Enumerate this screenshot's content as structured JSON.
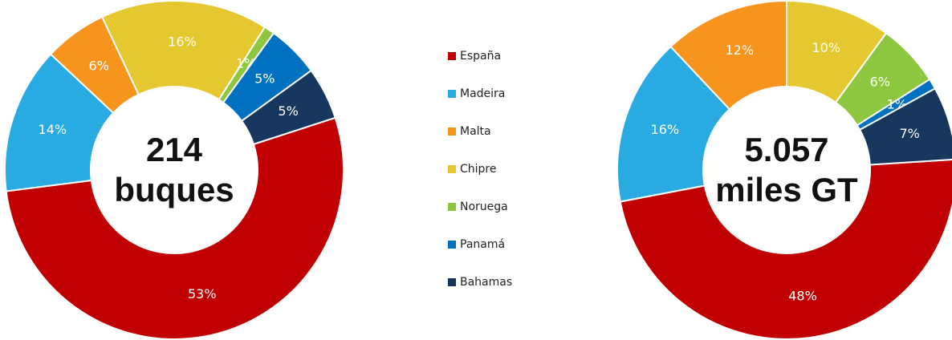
{
  "chart_data": [
    {
      "type": "pie",
      "categories": [
        "España",
        "Madeira",
        "Malta",
        "Chipre",
        "Noruega",
        "Panamá",
        "Bahamas"
      ],
      "values": [
        53,
        14,
        6,
        16,
        1,
        5,
        5
      ],
      "value_labels": [
        "53%",
        "14%",
        "6%",
        "16%",
        "1%",
        "5%",
        "5%"
      ],
      "colors": [
        "#c00000",
        "#29abe2",
        "#f7941d",
        "#e5c72f",
        "#8dc63f",
        "#0070c0",
        "#17375e"
      ],
      "center_label": [
        "214",
        "buques"
      ],
      "start_angle": 72
    },
    {
      "type": "pie",
      "categories": [
        "España",
        "Madeira",
        "Malta",
        "Chipre",
        "Noruega",
        "Panamá",
        "Bahamas"
      ],
      "values": [
        48,
        16,
        12,
        10,
        6,
        1,
        7
      ],
      "value_labels": [
        "48%",
        "16%",
        "12%",
        "10%",
        "6%",
        "1%",
        "7%"
      ],
      "colors": [
        "#c00000",
        "#29abe2",
        "#f7941d",
        "#e5c72f",
        "#8dc63f",
        "#0070c0",
        "#17375e"
      ],
      "center_label": [
        "5.057",
        "miles GT"
      ],
      "start_angle": 86.4
    }
  ]
}
